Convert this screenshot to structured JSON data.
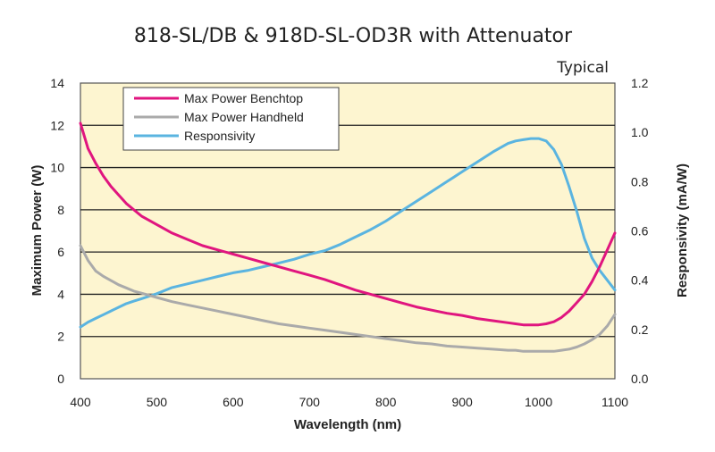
{
  "chart_data": {
    "type": "line",
    "title": "818-SL/DB & 918D-SL-OD3R with Attenuator",
    "annotation": "Typical",
    "xlabel": "Wavelength (nm)",
    "ylabel": "Maximum Power (W)",
    "y2label": "Responsivity  (mA/W)",
    "xlim": [
      400,
      1100
    ],
    "ylim": [
      0,
      14
    ],
    "y2lim": [
      0,
      1.2
    ],
    "x_ticks": [
      "400",
      "500",
      "600",
      "700",
      "800",
      "900",
      "1000",
      "1100"
    ],
    "y_ticks": [
      "0",
      "2",
      "4",
      "6",
      "8",
      "10",
      "12",
      "14"
    ],
    "y2_ticks": [
      "0.0",
      "0.2",
      "0.4",
      "0.6",
      "0.8",
      "1.0",
      "1.2"
    ],
    "grid": "horizontal",
    "plot_background": "#fdf5d0",
    "legend_position": "top-left",
    "x": [
      400,
      410,
      420,
      430,
      440,
      450,
      460,
      470,
      480,
      490,
      500,
      520,
      540,
      560,
      580,
      600,
      620,
      640,
      660,
      680,
      700,
      720,
      740,
      760,
      780,
      800,
      820,
      840,
      860,
      880,
      900,
      920,
      940,
      960,
      970,
      980,
      990,
      1000,
      1010,
      1020,
      1030,
      1040,
      1050,
      1060,
      1070,
      1080,
      1090,
      1100
    ],
    "series": [
      {
        "name": "Max Power Benchtop",
        "axis": "left",
        "color": "#e0157f",
        "values": [
          12.1,
          10.9,
          10.2,
          9.6,
          9.1,
          8.7,
          8.3,
          8.0,
          7.7,
          7.5,
          7.3,
          6.9,
          6.6,
          6.3,
          6.1,
          5.9,
          5.7,
          5.5,
          5.3,
          5.1,
          4.9,
          4.7,
          4.45,
          4.2,
          4.0,
          3.8,
          3.6,
          3.4,
          3.25,
          3.1,
          3.0,
          2.85,
          2.75,
          2.65,
          2.6,
          2.55,
          2.55,
          2.55,
          2.6,
          2.7,
          2.9,
          3.2,
          3.6,
          4.0,
          4.6,
          5.3,
          6.1,
          6.9
        ]
      },
      {
        "name": "Max Power Handheld",
        "axis": "left",
        "color": "#aaaaaa",
        "values": [
          6.3,
          5.6,
          5.1,
          4.85,
          4.65,
          4.45,
          4.3,
          4.15,
          4.05,
          3.95,
          3.85,
          3.65,
          3.5,
          3.35,
          3.2,
          3.05,
          2.9,
          2.75,
          2.6,
          2.5,
          2.4,
          2.3,
          2.2,
          2.1,
          2.0,
          1.9,
          1.8,
          1.7,
          1.65,
          1.55,
          1.5,
          1.45,
          1.4,
          1.35,
          1.35,
          1.3,
          1.3,
          1.3,
          1.3,
          1.3,
          1.35,
          1.4,
          1.5,
          1.65,
          1.85,
          2.1,
          2.5,
          3.05
        ]
      },
      {
        "name": "Responsivity",
        "axis": "right",
        "color": "#5ab4e0",
        "values": [
          0.21,
          0.23,
          0.245,
          0.26,
          0.275,
          0.29,
          0.305,
          0.315,
          0.325,
          0.335,
          0.345,
          0.37,
          0.385,
          0.4,
          0.415,
          0.43,
          0.44,
          0.455,
          0.47,
          0.485,
          0.505,
          0.52,
          0.545,
          0.575,
          0.605,
          0.64,
          0.68,
          0.72,
          0.76,
          0.8,
          0.84,
          0.88,
          0.92,
          0.955,
          0.965,
          0.97,
          0.975,
          0.975,
          0.965,
          0.93,
          0.87,
          0.78,
          0.68,
          0.57,
          0.49,
          0.44,
          0.4,
          0.36
        ]
      }
    ]
  }
}
